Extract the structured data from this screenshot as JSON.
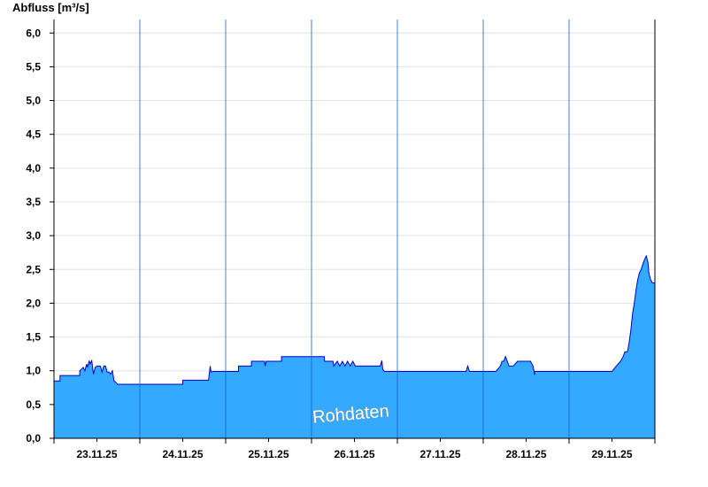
{
  "chart_data": {
    "type": "area",
    "ylabel": "Abfluss [m³/s]",
    "watermark": "Rohdaten",
    "ylim": [
      0,
      6.2
    ],
    "yticks": [
      0,
      0.5,
      1.0,
      1.5,
      2.0,
      2.5,
      3.0,
      3.5,
      4.0,
      4.5,
      5.0,
      5.5,
      6.0
    ],
    "ytick_labels": [
      "0,0",
      "0,5",
      "1,0",
      "1,5",
      "2,0",
      "2,5",
      "3,0",
      "3,5",
      "4,0",
      "4,5",
      "5,0",
      "5,5",
      "6,0"
    ],
    "xlim": [
      0,
      7.0
    ],
    "xtick_labels": [
      "23.11.25",
      "24.11.25",
      "25.11.25",
      "26.11.25",
      "27.11.25",
      "28.11.25",
      "29.11.25"
    ],
    "xtick_label_positions": [
      0.5,
      1.5,
      2.5,
      3.5,
      4.5,
      5.5,
      6.5
    ],
    "day_boundaries": [
      1,
      2,
      3,
      4,
      5,
      6
    ],
    "grid": "horizontal",
    "fill_color": "#33a9ff",
    "line_color": "#0000cc",
    "series": [
      {
        "x": [
          0,
          0.07,
          0.07,
          0.3,
          0.3,
          0.34,
          0.36,
          0.38,
          0.39,
          0.41,
          0.42,
          0.44,
          0.46,
          0.48,
          0.5,
          0.52,
          0.54,
          0.56,
          0.58,
          0.6,
          0.62,
          0.64,
          0.66,
          0.68,
          0.7,
          0.72,
          0.74,
          0.76,
          0.78,
          0.8,
          0.82,
          0.84,
          0.87,
          0.9,
          0.9,
          1.0,
          1.2,
          1.4,
          1.5,
          1.5,
          1.6,
          1.8,
          1.82,
          1.83,
          1.85,
          2.0,
          2.15,
          2.15,
          2.3,
          2.3,
          2.45,
          2.46,
          2.47,
          2.6,
          2.65,
          2.65,
          2.8,
          2.8,
          3.0,
          3.15,
          3.15,
          3.25,
          3.26,
          3.3,
          3.33,
          3.36,
          3.39,
          3.42,
          3.45,
          3.48,
          3.51,
          3.54,
          3.57,
          3.6,
          3.7,
          3.8,
          3.82,
          3.83,
          3.85,
          3.95,
          4.0,
          4.5,
          4.8,
          4.82,
          4.84,
          5.0,
          5.15,
          5.15,
          5.2,
          5.22,
          5.24,
          5.26,
          5.28,
          5.3,
          5.35,
          5.4,
          5.45,
          5.5,
          5.55,
          5.58,
          5.6,
          5.6,
          6.0,
          6.45,
          6.5,
          6.55,
          6.6,
          6.63,
          6.65,
          6.68,
          6.7,
          6.72,
          6.74,
          6.76,
          6.78,
          6.8,
          6.82,
          6.84,
          6.86,
          6.88,
          6.9,
          6.92,
          6.93,
          6.95,
          6.97,
          6.99,
          7.0
        ],
        "y": [
          0.85,
          0.85,
          0.93,
          0.93,
          1.0,
          1.05,
          1.0,
          1.1,
          1.05,
          1.15,
          1.1,
          1.15,
          0.95,
          1.05,
          1.07,
          1.07,
          1.07,
          0.98,
          1.07,
          1.07,
          0.98,
          0.98,
          0.95,
          1.0,
          0.85,
          0.83,
          0.8,
          0.8,
          0.8,
          0.8,
          0.8,
          0.8,
          0.8,
          0.8,
          0.8,
          0.8,
          0.8,
          0.8,
          0.8,
          0.86,
          0.86,
          0.86,
          1.07,
          0.98,
          0.99,
          0.99,
          0.99,
          1.07,
          1.07,
          1.14,
          1.14,
          1.07,
          1.14,
          1.14,
          1.14,
          1.21,
          1.21,
          1.21,
          1.21,
          1.21,
          1.14,
          1.14,
          1.07,
          1.14,
          1.07,
          1.14,
          1.07,
          1.14,
          1.07,
          1.14,
          1.07,
          1.07,
          1.07,
          1.07,
          1.07,
          1.07,
          1.15,
          1.02,
          0.99,
          0.99,
          0.99,
          0.99,
          0.99,
          1.07,
          0.99,
          0.99,
          0.99,
          0.99,
          1.07,
          1.14,
          1.14,
          1.21,
          1.14,
          1.07,
          1.07,
          1.14,
          1.14,
          1.14,
          1.14,
          1.07,
          0.94,
          0.99,
          0.99,
          0.99,
          0.99,
          1.07,
          1.14,
          1.21,
          1.28,
          1.28,
          1.42,
          1.6,
          1.85,
          2.0,
          2.2,
          2.35,
          2.45,
          2.5,
          2.58,
          2.65,
          2.7,
          2.6,
          2.45,
          2.35,
          2.3,
          2.3,
          2.3
        ]
      }
    ]
  }
}
